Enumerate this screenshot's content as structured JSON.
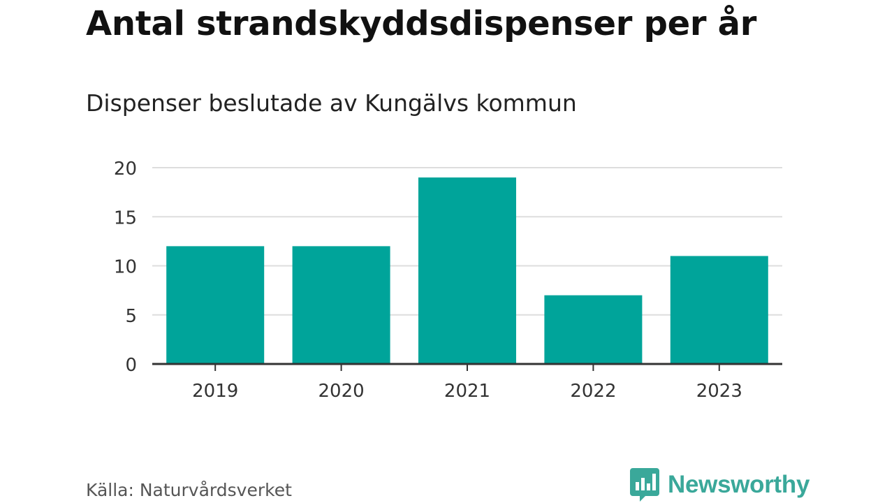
{
  "header": {
    "title": "Antal strandskyddsdispenser per år",
    "subtitle": "Dispenser beslutade av Kungälvs kommun"
  },
  "footer": {
    "source": "Källa: Naturvårdsverket",
    "brand": "Newsworthy",
    "brand_icon": "bar-chart-speech-bubble-icon",
    "brand_color": "#3aa89a"
  },
  "colors": {
    "bar": "#00a49a",
    "grid": "#dddddd",
    "axis": "#333333",
    "tick_text": "#333333"
  },
  "chart_data": {
    "type": "bar",
    "title": "Antal strandskyddsdispenser per år",
    "subtitle": "Dispenser beslutade av Kungälvs kommun",
    "categories": [
      "2019",
      "2020",
      "2021",
      "2022",
      "2023"
    ],
    "values": [
      12,
      12,
      19,
      7,
      11
    ],
    "xlabel": "",
    "ylabel": "",
    "ylim": [
      0,
      20
    ],
    "yticks": [
      0,
      5,
      10,
      15,
      20
    ],
    "grid": true,
    "legend": "none"
  }
}
